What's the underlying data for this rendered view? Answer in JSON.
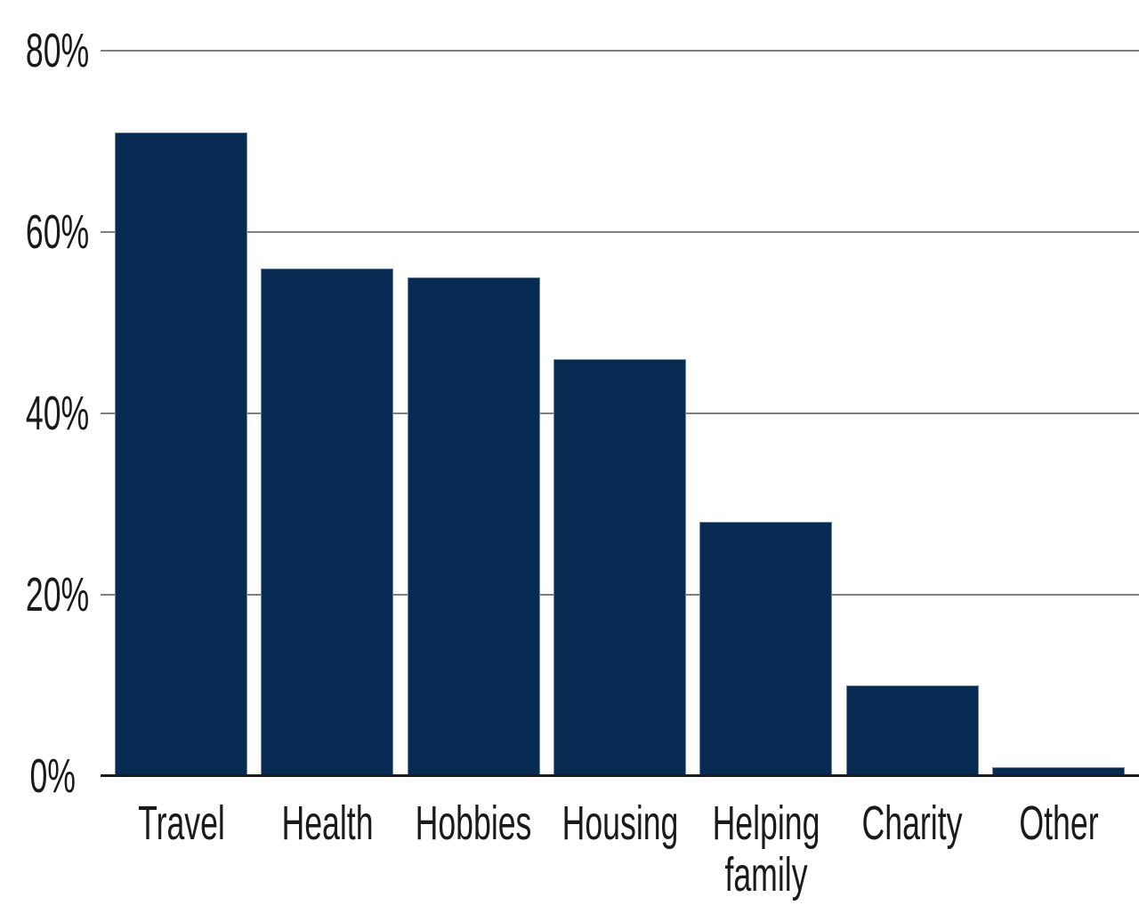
{
  "chart_data": {
    "type": "bar",
    "title": "",
    "xlabel": "",
    "ylabel": "",
    "categories": [
      "Travel",
      "Health",
      "Hobbies",
      "Housing",
      "Helping family",
      "Charity",
      "Other"
    ],
    "values": [
      71,
      56,
      55,
      46,
      28,
      10,
      1
    ],
    "unit": "%",
    "ylim": [
      0,
      80
    ],
    "yticks": [
      0,
      20,
      40,
      60,
      80
    ],
    "ytick_labels": [
      "0%",
      "20%",
      "40%",
      "60%",
      "80%"
    ],
    "grid": true,
    "legend": false,
    "bar_color": "#072A52",
    "bar_edge_color": "#6d86a3",
    "gridline_color": "#7f7f7f",
    "axis_line_color": "#1c1c1c",
    "text_color": "#1a1a1a",
    "background_color": "#ffffff"
  }
}
